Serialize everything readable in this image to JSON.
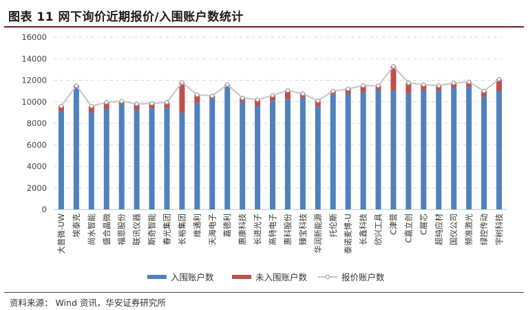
{
  "header": {
    "title": "图表 11 网下询价近期报价/入围账户数统计"
  },
  "footer": {
    "source": "资料来源： Wind 资讯，华安证券研究所"
  },
  "colors": {
    "in": "#4f81bd",
    "out": "#c0504d",
    "line": "#c8c8c8",
    "marker": "#a0a0a0",
    "grid": "#d9d9d9",
    "title_rule": "#7a1a1a"
  },
  "chart_data": {
    "type": "bar",
    "stacked": true,
    "categories": [
      "大普微-UW",
      "埃泰克",
      "尚水智能",
      "盛合晶微",
      "福恩股份",
      "联讯仪器",
      "斯奇智能",
      "春光集团",
      "长裕集团",
      "维通利",
      "天海电子",
      "嘉德利",
      "惠康科技",
      "长进光子",
      "高特电子",
      "惠科股份",
      "臻宝科技",
      "华润新能源",
      "托伦斯",
      "泰诺麦博-U",
      "长鑫科技",
      "欣兴工具",
      "C津营",
      "C嘉立创",
      "C展芯",
      "超纯应材",
      "国仪公司",
      "频准激光",
      "绿控传动",
      "宇树科技"
    ],
    "series": [
      {
        "name": "入围账户数",
        "type": "bar",
        "values": [
          9150,
          11300,
          9000,
          9350,
          9750,
          9250,
          9400,
          9450,
          9000,
          9900,
          10300,
          11400,
          10000,
          9600,
          10100,
          10250,
          10400,
          9550,
          10700,
          10750,
          10900,
          11100,
          11000,
          10800,
          11100,
          11050,
          11300,
          11350,
          10450,
          11000
        ]
      },
      {
        "name": "未入围账户数",
        "type": "bar",
        "values": [
          450,
          200,
          600,
          600,
          300,
          550,
          450,
          500,
          2800,
          750,
          250,
          200,
          350,
          600,
          500,
          800,
          350,
          550,
          300,
          450,
          600,
          400,
          2300,
          950,
          500,
          450,
          450,
          500,
          550,
          1100
        ]
      },
      {
        "name": "报价账户数",
        "type": "line",
        "values": [
          9600,
          11500,
          9600,
          9950,
          10050,
          9800,
          9850,
          9950,
          11800,
          10650,
          10550,
          11600,
          10350,
          10200,
          10600,
          11050,
          10750,
          10100,
          11000,
          11200,
          11500,
          11500,
          13300,
          11750,
          11600,
          11500,
          11750,
          11850,
          11000,
          12100
        ]
      }
    ],
    "ylim": [
      0,
      16000
    ],
    "yticks": [
      "0",
      "2000",
      "4000",
      "6000",
      "8000",
      "10000",
      "12000",
      "14000",
      "16000"
    ],
    "grid": true,
    "legend_position": "bottom"
  }
}
